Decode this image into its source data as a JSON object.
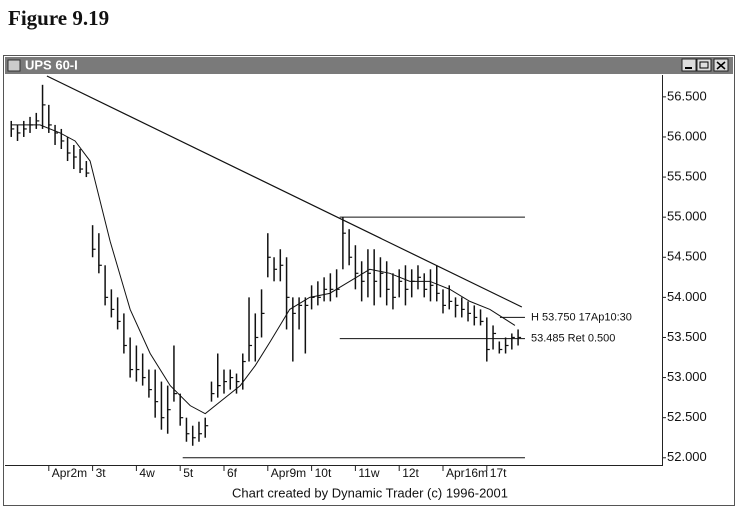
{
  "figure_title": "Figure 9.19",
  "chart_data": {
    "type": "ohlc",
    "title": "UPS 60-I",
    "footer": "Chart created by Dynamic Trader (c) 1996-2001",
    "color": "#111111",
    "xlim": [
      -1,
      104
    ],
    "ylim": [
      51.91,
      56.76
    ],
    "xticks": [
      {
        "value": 6,
        "label": "Apr2m"
      },
      {
        "value": 13,
        "label": "3t"
      },
      {
        "value": 20,
        "label": "4w"
      },
      {
        "value": 27,
        "label": "5t"
      },
      {
        "value": 34,
        "label": "6f"
      },
      {
        "value": 41,
        "label": "Apr9m"
      },
      {
        "value": 48,
        "label": "10t"
      },
      {
        "value": 55,
        "label": "11w"
      },
      {
        "value": 62,
        "label": "12t"
      },
      {
        "value": 69,
        "label": "Apr16m"
      },
      {
        "value": 76,
        "label": "17t"
      }
    ],
    "yticks": [
      {
        "value": 52,
        "label": "52.000"
      },
      {
        "value": 52.5,
        "label": "52.500"
      },
      {
        "value": 53,
        "label": "53.000"
      },
      {
        "value": 53.5,
        "label": "53.500"
      },
      {
        "value": 54,
        "label": "54.000"
      },
      {
        "value": 54.5,
        "label": "54.500"
      },
      {
        "value": 55,
        "label": "55.000"
      },
      {
        "value": 55.5,
        "label": "55.500"
      },
      {
        "value": 56,
        "label": "56.000"
      },
      {
        "value": 56.5,
        "label": "56.500"
      }
    ],
    "high": [
      56.2,
      56.15,
      56.2,
      56.25,
      56.3,
      56.65,
      56.4,
      56.15,
      56.1,
      56.0,
      55.9,
      55.85,
      55.7,
      54.9,
      54.8,
      54.4,
      54.1,
      54.0,
      53.8,
      53.5,
      53.4,
      53.3,
      53.1,
      53.1,
      52.95,
      52.9,
      53.4,
      52.8,
      52.5,
      52.4,
      52.45,
      52.5,
      52.95,
      53.3,
      53.1,
      53.1,
      53.05,
      53.3,
      54.0,
      53.8,
      54.1,
      54.8,
      54.5,
      54.6,
      54.5,
      54.0,
      54.0,
      54.0,
      54.15,
      54.2,
      54.25,
      54.3,
      54.35,
      55.0,
      54.85,
      54.65,
      54.45,
      54.6,
      54.6,
      54.5,
      54.45,
      54.3,
      54.35,
      54.4,
      54.35,
      54.4,
      54.3,
      54.35,
      54.4,
      54.1,
      54.15,
      54.0,
      54.0,
      53.95,
      53.9,
      53.85,
      53.75,
      53.65,
      53.45,
      53.5,
      53.55,
      53.6
    ],
    "low": [
      56.0,
      55.95,
      56.0,
      56.05,
      56.1,
      56.1,
      56.05,
      55.9,
      55.85,
      55.7,
      55.6,
      55.55,
      55.5,
      54.5,
      54.3,
      53.9,
      53.75,
      53.6,
      53.3,
      53.0,
      52.95,
      52.9,
      52.75,
      52.5,
      52.35,
      52.3,
      52.7,
      52.4,
      52.2,
      52.15,
      52.2,
      52.25,
      52.7,
      52.75,
      52.8,
      52.85,
      52.8,
      52.85,
      53.2,
      53.2,
      53.5,
      54.25,
      54.2,
      54.2,
      53.6,
      53.2,
      53.6,
      53.3,
      53.85,
      53.9,
      53.95,
      53.95,
      54.0,
      54.35,
      54.4,
      54.1,
      53.95,
      54.0,
      53.9,
      54.0,
      53.9,
      53.85,
      54.0,
      53.9,
      54.0,
      54.1,
      54.0,
      53.95,
      53.95,
      53.8,
      53.85,
      53.75,
      53.75,
      53.7,
      53.65,
      53.65,
      53.2,
      53.35,
      53.3,
      53.3,
      53.35,
      53.4
    ],
    "close": [
      56.1,
      56.05,
      56.1,
      56.15,
      56.2,
      56.4,
      56.15,
      56.05,
      55.95,
      55.8,
      55.75,
      55.6,
      55.55,
      54.6,
      54.4,
      54.0,
      53.85,
      53.7,
      53.4,
      53.1,
      53.1,
      53.0,
      52.85,
      52.7,
      52.5,
      52.6,
      52.8,
      52.5,
      52.3,
      52.25,
      52.3,
      52.4,
      52.8,
      52.9,
      52.95,
      53.0,
      52.95,
      53.2,
      53.4,
      53.5,
      53.8,
      54.5,
      54.35,
      54.4,
      54.0,
      53.8,
      53.9,
      53.9,
      54.0,
      54.0,
      54.1,
      54.1,
      54.1,
      54.8,
      54.5,
      54.3,
      54.2,
      54.3,
      54.2,
      54.3,
      54.1,
      54.0,
      54.2,
      54.1,
      54.2,
      54.25,
      54.1,
      54.15,
      54.05,
      53.9,
      53.95,
      53.9,
      53.85,
      53.8,
      53.75,
      53.7,
      53.35,
      53.55,
      53.35,
      53.4,
      53.5,
      53.5
    ],
    "moving_average": {
      "color": "#111111",
      "x": [
        0,
        4.6,
        7.8,
        10.2,
        12.6,
        15.8,
        19,
        22.2,
        25.4,
        28.6,
        31,
        33.4,
        36.6,
        39,
        41.4,
        44.5,
        47.7,
        50.9,
        54.1,
        57.3,
        60.5,
        63.7,
        66.9,
        70.1,
        73.3,
        76.5,
        80.5
      ],
      "values": [
        56.15,
        56.15,
        56.05,
        55.95,
        55.7,
        54.7,
        53.85,
        53.3,
        52.9,
        52.65,
        52.55,
        52.7,
        52.9,
        53.15,
        53.45,
        53.85,
        54.0,
        54.05,
        54.2,
        54.35,
        54.3,
        54.2,
        54.2,
        54.1,
        53.95,
        53.85,
        53.65
      ]
    },
    "trendline": {
      "x": [
        5.7,
        81.6
      ],
      "y": [
        56.76,
        53.88
      ]
    },
    "levels": [
      {
        "x": [
          52.5,
          82.1
        ],
        "y": 55.0
      },
      {
        "x": [
          27.4,
          82.1
        ],
        "y": 52.0
      },
      {
        "x": [
          52.5,
          82.1
        ],
        "y": 53.485,
        "label": "53.485 Ret 0.500"
      },
      {
        "x": [
          78.1,
          82.1
        ],
        "y": 53.75,
        "label": "H 53.750 17Ap10:30"
      }
    ]
  }
}
